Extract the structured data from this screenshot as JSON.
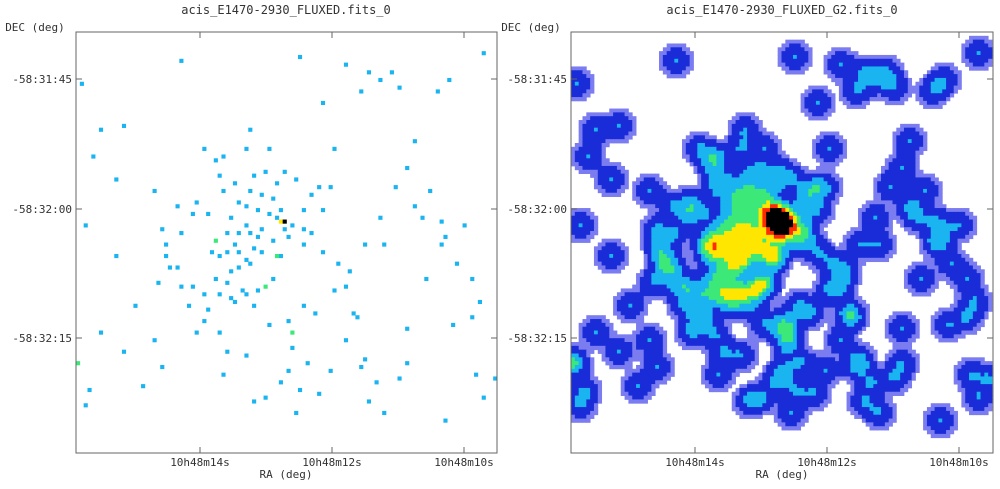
{
  "chart_data": [
    {
      "type": "heatmap",
      "title": "acis_E1470-2930_FLUXED.fits_0",
      "xlabel": "RA (deg)",
      "ylabel": "DEC (deg)",
      "x_ticks": [
        "10h48m14s",
        "10h48m12s",
        "10h48m10s"
      ],
      "y_ticks": [
        "-58:31:45",
        "-58:32:00",
        "-58:32:15"
      ],
      "colormap": [
        "#ffffff",
        "#1ab4f0",
        "#3ce878",
        "#ffe600",
        "#000000"
      ],
      "grid": false,
      "cells": [
        [
          10,
          58
        ],
        [
          10,
          38
        ],
        [
          17,
          92
        ],
        [
          20,
          80
        ],
        [
          31,
          78
        ],
        [
          44,
          68
        ],
        [
          46,
          96
        ],
        [
          51,
          64
        ],
        [
          55,
          88
        ],
        [
          59,
          71
        ],
        [
          45,
          25
        ],
        [
          33,
          30
        ],
        [
          38,
          32
        ],
        [
          62,
          73
        ],
        [
          64,
          18
        ],
        [
          66,
          40
        ],
        [
          71,
          62
        ],
        [
          73,
          74
        ],
        [
          56,
          82
        ],
        [
          53,
          58
        ],
        [
          80,
          55
        ],
        [
          90,
          48
        ],
        [
          103,
          64
        ],
        [
          105,
          70
        ],
        [
          109,
          90
        ],
        [
          70,
          8
        ],
        [
          74,
          15
        ],
        [
          33,
          68
        ],
        [
          37,
          78
        ],
        [
          40,
          69
        ],
        [
          27,
          7
        ],
        [
          20,
          41
        ],
        [
          12,
          24
        ],
        [
          6,
          25
        ],
        [
          4,
          32
        ],
        [
          1,
          13
        ],
        [
          2,
          50
        ],
        [
          27,
          66
        ],
        [
          58,
          6
        ],
        [
          76,
          10
        ],
        [
          79,
          12
        ],
        [
          84,
          14
        ],
        [
          82,
          10
        ],
        [
          86,
          35
        ],
        [
          88,
          28
        ],
        [
          94,
          15
        ],
        [
          106,
          5
        ],
        [
          97,
          12
        ],
        [
          99,
          60
        ],
        [
          98,
          76
        ],
        [
          64,
          46
        ],
        [
          63,
          40
        ],
        [
          70,
          80
        ],
        [
          74,
          87
        ],
        [
          78,
          91
        ],
        [
          84,
          90
        ],
        [
          61,
          52
        ],
        [
          67,
          30
        ],
        [
          86,
          77
        ],
        [
          103,
          74
        ],
        [
          106,
          95
        ],
        [
          96,
          101
        ],
        [
          80,
          99
        ],
        [
          76,
          96
        ],
        [
          57,
          99
        ],
        [
          49,
          95
        ],
        [
          38,
          89
        ],
        [
          22,
          87
        ],
        [
          12,
          83
        ],
        [
          6,
          78
        ],
        [
          3,
          93
        ],
        [
          2,
          97
        ],
        [
          104,
          89
        ],
        [
          86,
          86
        ],
        [
          55,
          75
        ],
        [
          50,
          76
        ],
        [
          44,
          84
        ],
        [
          39,
          83
        ],
        [
          23,
          58
        ],
        [
          15,
          71
        ],
        [
          54,
          36
        ],
        [
          57,
          38
        ],
        [
          61,
          42
        ],
        [
          47,
          46
        ],
        [
          51,
          43
        ],
        [
          53,
          46
        ],
        [
          52,
          48
        ],
        [
          51,
          54
        ],
        [
          48,
          57
        ],
        [
          54,
          51
        ],
        [
          56,
          50
        ],
        [
          55,
          53
        ],
        [
          59,
          46
        ],
        [
          59,
          51
        ],
        [
          59,
          55
        ],
        [
          45,
          52
        ],
        [
          44,
          50
        ],
        [
          42,
          52
        ],
        [
          41,
          55
        ],
        [
          42,
          57
        ],
        [
          44,
          59
        ],
        [
          45,
          60
        ],
        [
          42,
          61
        ],
        [
          40,
          62
        ],
        [
          39,
          57
        ],
        [
          37,
          58
        ],
        [
          35,
          57
        ],
        [
          40,
          48
        ],
        [
          42,
          44
        ],
        [
          45,
          41
        ],
        [
          48,
          42
        ],
        [
          44,
          45
        ],
        [
          41,
          39
        ],
        [
          38,
          41
        ],
        [
          37,
          37
        ],
        [
          36,
          33
        ],
        [
          46,
          37
        ],
        [
          49,
          36
        ],
        [
          52,
          39
        ],
        [
          50,
          30
        ],
        [
          44,
          30
        ],
        [
          34,
          47
        ],
        [
          39,
          52
        ],
        [
          46,
          56
        ],
        [
          48,
          51
        ],
        [
          50,
          47
        ],
        [
          47,
          53
        ],
        [
          39,
          65
        ],
        [
          36,
          64
        ],
        [
          37,
          68
        ],
        [
          34,
          72
        ],
        [
          41,
          70
        ],
        [
          43,
          67
        ],
        [
          46,
          71
        ],
        [
          47,
          67
        ],
        [
          23,
          55
        ],
        [
          22,
          51
        ],
        [
          24,
          61
        ],
        [
          21,
          65
        ],
        [
          27,
          52
        ],
        [
          30,
          47
        ],
        [
          31,
          44
        ],
        [
          26,
          45
        ],
        [
          26,
          61
        ],
        [
          29,
          71
        ],
        [
          30,
          66
        ],
        [
          33,
          75
        ],
        [
          68,
          60
        ],
        [
          64,
          57
        ],
        [
          67,
          67
        ],
        [
          70,
          66
        ],
        [
          72,
          73
        ],
        [
          75,
          55
        ],
        [
          79,
          48
        ],
        [
          83,
          40
        ],
        [
          88,
          45
        ],
        [
          92,
          41
        ],
        [
          95,
          49
        ],
        [
          96,
          53
        ],
        [
          95,
          55
        ],
        [
          101,
          50
        ],
        [
          91,
          64
        ],
        [
          75,
          85
        ],
        [
          66,
          88
        ],
        [
          63,
          94
        ],
        [
          58,
          93
        ],
        [
          53,
          91
        ],
        [
          60,
          86
        ]
      ],
      "hot_cells": [
        [
          36,
          54,
          "#3ce878"
        ],
        [
          52,
          58,
          "#3ce878"
        ],
        [
          49,
          66,
          "#3ce878"
        ],
        [
          56,
          78,
          "#3ce878"
        ],
        [
          0,
          86,
          "#3ce878"
        ],
        [
          53,
          49,
          "#ffe600"
        ],
        [
          54,
          49,
          "#000000"
        ]
      ]
    },
    {
      "type": "heatmap",
      "title": "acis_E1470-2930_FLUXED_G2.fits_0",
      "xlabel": "RA (deg)",
      "ylabel": "DEC (deg)",
      "x_ticks": [
        "10h48m14s",
        "10h48m12s",
        "10h48m10s"
      ],
      "y_ticks": [
        "-58:31:45",
        "-58:32:00",
        "-58:32:15"
      ],
      "colormap": [
        "#ffffff",
        "#7a7cf0",
        "#1a2cd8",
        "#1ab4f0",
        "#3ce878",
        "#ffe600",
        "#ff2a00",
        "#000000"
      ],
      "grid": false,
      "smoothing": "gaussian"
    }
  ]
}
